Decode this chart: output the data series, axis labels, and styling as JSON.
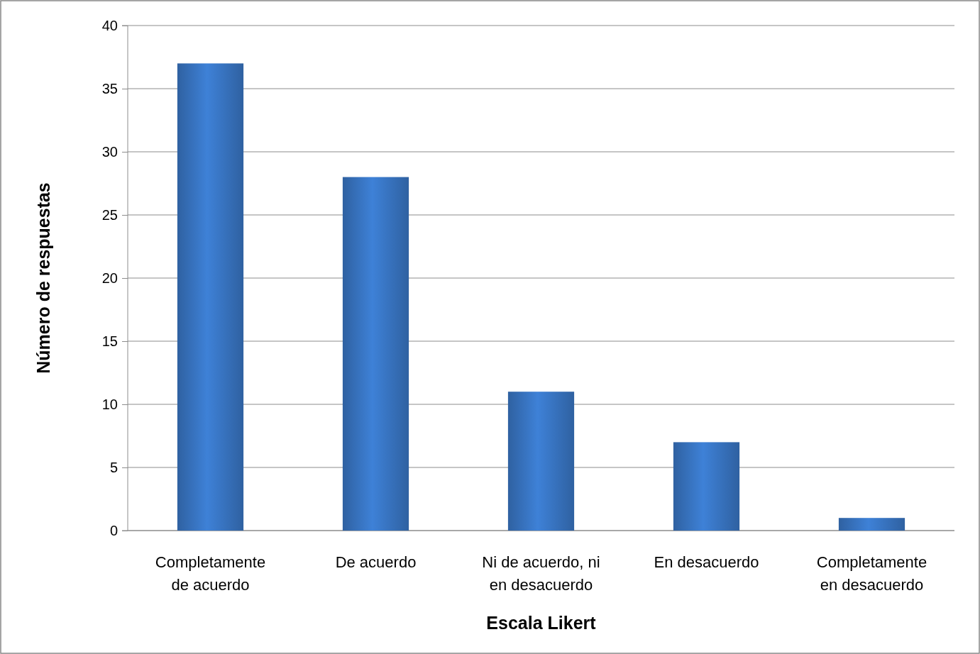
{
  "chart_data": {
    "type": "bar",
    "xlabel": "Escala Likert",
    "ylabel": "Número de respuestas",
    "categories": [
      "Completamente de acuerdo",
      "De acuerdo",
      "Ni de acuerdo, ni en desacuerdo",
      "En desacuerdo",
      "Completamente en desacuerdo"
    ],
    "values": [
      37,
      28,
      11,
      7,
      1
    ],
    "color": "#3a78c8",
    "ylim": [
      0,
      40
    ],
    "yticks": [
      0,
      5,
      10,
      15,
      20,
      25,
      30,
      35,
      40
    ],
    "grid": "y"
  }
}
